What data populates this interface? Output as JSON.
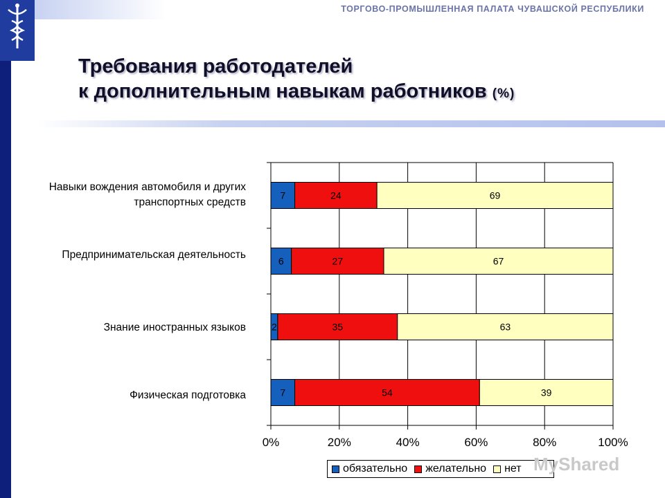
{
  "header": {
    "org_name": "ТОРГОВО-ПРОМЫШЛЕННАЯ ПАЛАТА ЧУВАШСКОЙ РЕСПУБЛИКИ"
  },
  "slide": {
    "title_line1": "Требования работодателей",
    "title_line2": "к дополнительным навыкам работников",
    "title_unit": "(%)"
  },
  "watermark": "MyShared",
  "chart_data": {
    "type": "bar",
    "orientation": "horizontal",
    "stacked": "percent",
    "categories": [
      "Навыки вождения автомобиля и других транспортных средств",
      "Предпринимательская деятельность",
      "Знание иностранных языков",
      "Физическая подготовка"
    ],
    "series": [
      {
        "name": "обязательно",
        "values": [
          7,
          6,
          2,
          7
        ],
        "color": "#1560bd"
      },
      {
        "name": "желательно",
        "values": [
          24,
          27,
          35,
          54
        ],
        "color": "#ef0f0f"
      },
      {
        "name": "нет",
        "values": [
          69,
          67,
          63,
          39
        ],
        "color": "#ffffc0"
      }
    ],
    "xlim": [
      0,
      100
    ],
    "x_ticks": [
      "0%",
      "20%",
      "40%",
      "60%",
      "80%",
      "100%"
    ],
    "grid": true,
    "legend_position": "bottom"
  }
}
